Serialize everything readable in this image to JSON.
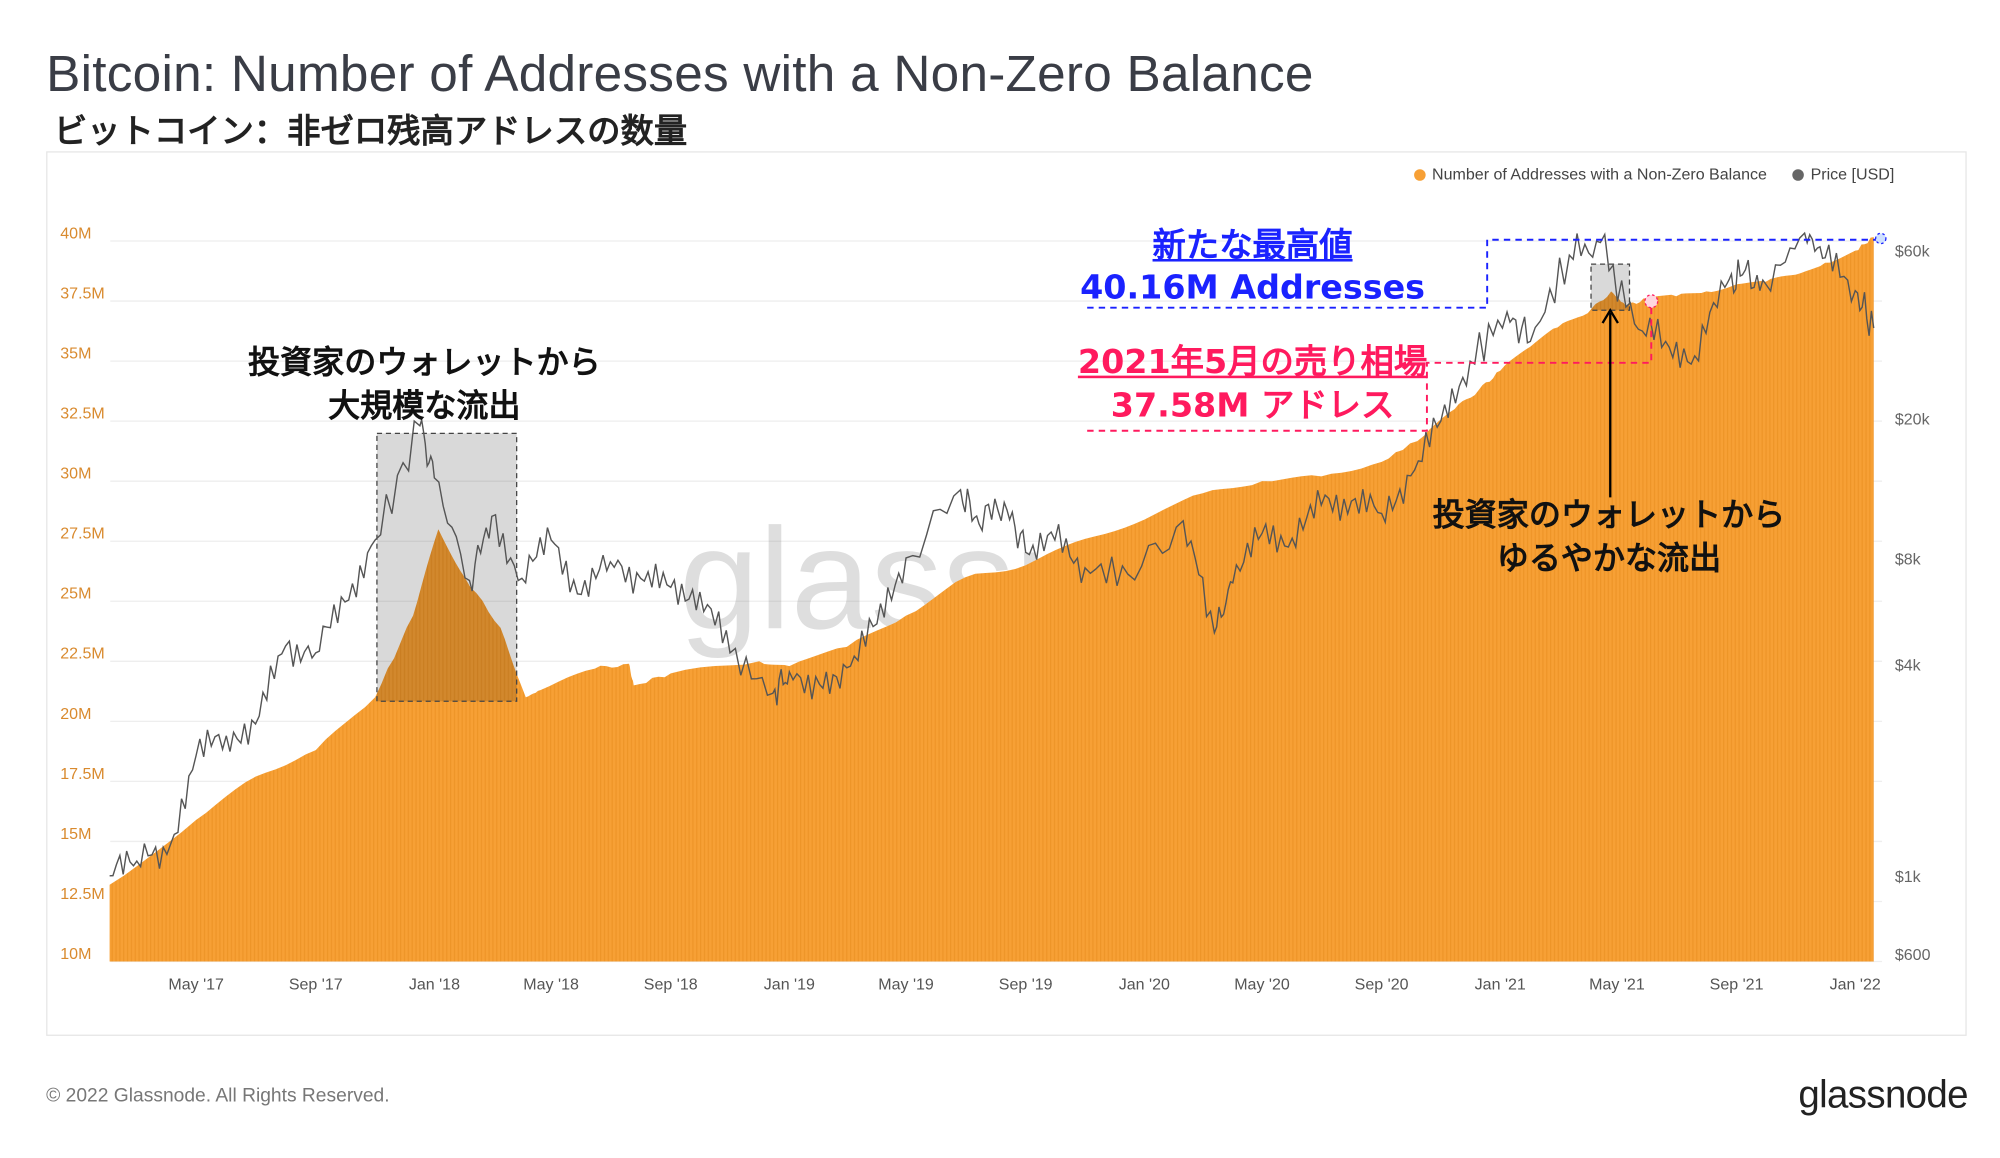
{
  "title": "Bitcoin: Number of Addresses with a Non-Zero Balance",
  "subtitle": "ビットコイン：非ゼロ残高アドレスの数量",
  "footer": "© 2022 Glassnode. All Rights Reserved.",
  "logo": "glassnode",
  "watermark": "glassnode",
  "colors": {
    "addresses": "#f7a035",
    "price": "#555555",
    "annotation_blue": "#1a22ff",
    "annotation_red": "#ff1a5e"
  },
  "annotations": {
    "outflow_large": [
      "投資家のウォレットから",
      "大規模な流出"
    ],
    "ath": [
      "新たな最高値",
      "40.16M Addresses"
    ],
    "may_sell": [
      "2021年5月の売り相場",
      "37.58M アドレス"
    ],
    "outflow_gradual": [
      "投資家のウォレットから",
      "ゆるやかな流出"
    ]
  },
  "chart_data": {
    "type": "area",
    "title": "Bitcoin: Number of Addresses with a Non-Zero Balance",
    "legend": {
      "placement": "top-right",
      "entries": [
        "Number of Addresses with a Non-Zero Balance",
        "Price [USD]"
      ]
    },
    "x_ticks": [
      "May '17",
      "Sep '17",
      "Jan '18",
      "May '18",
      "Sep '18",
      "Jan '19",
      "May '19",
      "Sep '19",
      "Jan '20",
      "May '20",
      "Sep '20",
      "Jan '21",
      "May '21",
      "Sep '21",
      "Jan '22"
    ],
    "y_left": {
      "range": [
        10,
        40
      ],
      "unit": "M",
      "ticks": [
        "10M",
        "12.5M",
        "15M",
        "17.5M",
        "20M",
        "22.5M",
        "25M",
        "27.5M",
        "30M",
        "32.5M",
        "35M",
        "37.5M",
        "40M"
      ]
    },
    "y_right": {
      "scale": "log",
      "range": [
        600,
        70000
      ],
      "ticks": [
        {
          "label": "$600",
          "value": 600
        },
        {
          "label": "$1k",
          "value": 1000
        },
        {
          "label": "$4k",
          "value": 4000
        },
        {
          "label": "$8k",
          "value": 8000
        },
        {
          "label": "$20k",
          "value": 20000
        },
        {
          "label": "$60k",
          "value": 60000
        }
      ]
    },
    "grid": true,
    "series": [
      {
        "name": "Number of Addresses with a Non-Zero Balance",
        "axis": "left",
        "type": "area",
        "x": [
          "2017-02-01",
          "2017-05-01",
          "2017-07-01",
          "2017-09-01",
          "2017-11-01",
          "2017-12-10",
          "2018-01-05",
          "2018-02-01",
          "2018-03-10",
          "2018-04-05",
          "2018-04-20",
          "2018-06-15",
          "2018-07-20",
          "2018-07-25",
          "2018-09-01",
          "2018-12-01",
          "2019-01-01",
          "2019-03-01",
          "2019-05-01",
          "2019-07-01",
          "2019-09-01",
          "2019-11-01",
          "2020-01-01",
          "2020-03-01",
          "2020-05-01",
          "2020-07-01",
          "2020-09-01",
          "2020-10-15",
          "2020-11-15",
          "2020-12-10",
          "2021-01-01",
          "2021-02-01",
          "2021-03-01",
          "2021-04-01",
          "2021-04-25",
          "2021-05-10",
          "2021-06-01",
          "2021-07-01",
          "2021-08-01",
          "2021-09-01",
          "2021-10-01",
          "2021-11-01",
          "2021-12-01",
          "2022-01-01",
          "2022-01-20"
        ],
        "values": [
          13.2,
          15.9,
          17.7,
          18.8,
          21.0,
          24.4,
          28.0,
          26.0,
          23.9,
          21.0,
          21.3,
          22.2,
          22.4,
          21.5,
          22.0,
          22.5,
          22.3,
          23.1,
          24.4,
          26.0,
          26.5,
          27.6,
          28.4,
          29.5,
          30.0,
          30.2,
          30.8,
          31.9,
          33.0,
          33.8,
          34.6,
          35.6,
          36.4,
          37.0,
          37.9,
          37.3,
          37.6,
          37.7,
          37.9,
          38.2,
          38.3,
          38.6,
          39.1,
          39.6,
          40.16
        ]
      },
      {
        "name": "Price [USD]",
        "axis": "right",
        "type": "line",
        "x": [
          "2017-02-01",
          "2017-03-01",
          "2017-04-01",
          "2017-05-01",
          "2017-06-01",
          "2017-07-01",
          "2017-08-01",
          "2017-09-01",
          "2017-10-01",
          "2017-11-01",
          "2017-12-17",
          "2018-01-01",
          "2018-02-06",
          "2018-03-01",
          "2018-04-01",
          "2018-05-01",
          "2018-06-01",
          "2018-07-01",
          "2018-08-01",
          "2018-09-01",
          "2018-10-01",
          "2018-11-01",
          "2018-12-15",
          "2019-01-01",
          "2019-02-01",
          "2019-03-01",
          "2019-04-01",
          "2019-05-01",
          "2019-06-26",
          "2019-07-15",
          "2019-08-10",
          "2019-09-01",
          "2019-10-01",
          "2019-11-01",
          "2019-12-15",
          "2020-02-10",
          "2020-03-13",
          "2020-04-01",
          "2020-05-01",
          "2020-06-01",
          "2020-07-01",
          "2020-08-01",
          "2020-09-01",
          "2020-10-01",
          "2020-11-01",
          "2020-12-01",
          "2021-01-08",
          "2021-02-01",
          "2021-03-13",
          "2021-04-14",
          "2021-05-19",
          "2021-06-20",
          "2021-07-20",
          "2021-08-20",
          "2021-09-07",
          "2021-10-01",
          "2021-11-10",
          "2021-12-01",
          "2022-01-01",
          "2022-01-20"
        ],
        "values": [
          1000,
          1100,
          1150,
          2200,
          2500,
          2700,
          4500,
          4300,
          6000,
          9000,
          19000,
          13500,
          6900,
          10500,
          7000,
          9000,
          6300,
          7800,
          7000,
          6600,
          6400,
          4300,
          3300,
          3800,
          3500,
          3900,
          5200,
          8000,
          12500,
          10000,
          11500,
          8300,
          9000,
          7500,
          7200,
          10200,
          4900,
          6800,
          9400,
          9100,
          11300,
          11600,
          10700,
          13700,
          19600,
          29000,
          40000,
          33000,
          58000,
          63000,
          37000,
          33000,
          30000,
          47000,
          51000,
          48000,
          67000,
          57000,
          46000,
          36000
        ]
      }
    ]
  }
}
